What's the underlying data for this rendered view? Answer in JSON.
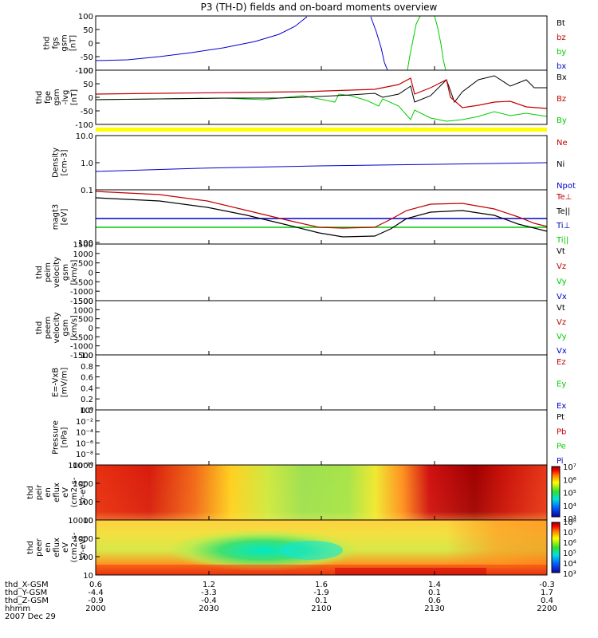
{
  "title": "P3 (TH-D) fields and on-board moments overview",
  "colors": {
    "black": "#000000",
    "red": "#c00000",
    "green": "#00cc00",
    "blue": "#0000cc",
    "yellow": "#ffff00"
  },
  "chart_data": [
    {
      "id": "fgs",
      "type": "line",
      "ylabel": [
        "thd",
        "fgs",
        "gsm",
        "[nT]"
      ],
      "yticks": [
        "100",
        "50",
        "0",
        "-50",
        "-100"
      ],
      "legend": [
        {
          "name": "Bt",
          "color": "#000000"
        },
        {
          "name": "bz",
          "color": "#c00000"
        },
        {
          "name": "by",
          "color": "#00cc00"
        },
        {
          "name": "bx",
          "color": "#0000cc"
        }
      ]
    },
    {
      "id": "fge",
      "type": "line",
      "ylabel": [
        "thd",
        "fge",
        "gsm",
        "-lvg",
        "[nT]"
      ],
      "yticks": [
        "100",
        "50",
        "0",
        "-50",
        "-100"
      ],
      "legend": [
        {
          "name": "Bx",
          "color": "#000000"
        },
        {
          "name": "Bz",
          "color": "#c00000"
        },
        {
          "name": "By",
          "color": "#00cc00"
        }
      ]
    },
    {
      "id": "density",
      "type": "line",
      "scale": "log",
      "ylabel": [
        "Density",
        "[cm-3]"
      ],
      "yticks": [
        "10.0",
        "1.0",
        "0.1"
      ],
      "legend": [
        {
          "name": "Ne",
          "color": "#c00000"
        },
        {
          "name": "Ni",
          "color": "#000000"
        },
        {
          "name": "Npot",
          "color": "#0000cc"
        }
      ]
    },
    {
      "id": "temp",
      "type": "line",
      "scale": "log",
      "ylabel": [
        "magt3",
        "[eV]"
      ],
      "yticks": [
        "100"
      ],
      "legend": [
        {
          "name": "Te⊥",
          "color": "#c00000"
        },
        {
          "name": "Te||",
          "color": "#000000"
        },
        {
          "name": "Ti⊥",
          "color": "#0000cc"
        },
        {
          "name": "Ti||",
          "color": "#00cc00"
        }
      ]
    },
    {
      "id": "peim",
      "type": "line",
      "ylabel": [
        "thd",
        "peim",
        "velocity",
        "gsm",
        "[km/s]"
      ],
      "yticks": [
        "1500",
        "1000",
        "500",
        "0",
        "-500",
        "-1000",
        "-1500"
      ],
      "legend": [
        {
          "name": "Vt",
          "color": "#000000"
        },
        {
          "name": "Vz",
          "color": "#c00000"
        },
        {
          "name": "Vy",
          "color": "#00cc00"
        },
        {
          "name": "Vx",
          "color": "#0000cc"
        }
      ]
    },
    {
      "id": "peem",
      "type": "line",
      "ylabel": [
        "thd",
        "peem",
        "velocity",
        "gsm",
        "[km/s]"
      ],
      "yticks": [
        "1500",
        "1000",
        "500",
        "0",
        "-500",
        "-1000",
        "-1500"
      ],
      "legend": [
        {
          "name": "Vt",
          "color": "#000000"
        },
        {
          "name": "Vz",
          "color": "#c00000"
        },
        {
          "name": "Vy",
          "color": "#00cc00"
        },
        {
          "name": "Vx",
          "color": "#0000cc"
        }
      ]
    },
    {
      "id": "efield",
      "type": "line",
      "ylabel": [
        "E=-VxB",
        "[mV/m]"
      ],
      "yticks": [
        "1.0",
        "0.8",
        "0.6",
        "0.4",
        "0.2",
        "0.0"
      ],
      "legend": [
        {
          "name": "Ez",
          "color": "#c00000"
        },
        {
          "name": "Ey",
          "color": "#00cc00"
        },
        {
          "name": "Ex",
          "color": "#0000cc"
        }
      ]
    },
    {
      "id": "pressure",
      "type": "line",
      "scale": "log",
      "ylabel": [
        "Pressure",
        "[nPa]"
      ],
      "yticks": [
        "10⁰",
        "10⁻²",
        "10⁻⁴",
        "10⁻⁶",
        "10⁻⁸",
        "10⁻¹⁰"
      ],
      "legend": [
        {
          "name": "Pt",
          "color": "#000000"
        },
        {
          "name": "Pb",
          "color": "#c00000"
        },
        {
          "name": "Pe",
          "color": "#00cc00"
        },
        {
          "name": "Pi",
          "color": "#0000cc"
        }
      ]
    },
    {
      "id": "peir",
      "type": "heatmap",
      "scale": "log",
      "ylabel": [
        "thd",
        "peir",
        "en",
        "eflux",
        "eV",
        "(cm2-s-",
        "sr-eV)"
      ],
      "yticks": [
        "10000",
        "1000",
        "100",
        "10"
      ],
      "colorbar_ticks": [
        "10⁷",
        "10⁶",
        "10⁵",
        "10⁴",
        "10³"
      ]
    },
    {
      "id": "peer",
      "type": "heatmap",
      "scale": "log",
      "ylabel": [
        "thd",
        "peer",
        "en",
        "eflux",
        "eV",
        "(cm2-s-",
        "sr-eV)"
      ],
      "yticks": [
        "10000",
        "1000",
        "100",
        "10"
      ],
      "colorbar_ticks": [
        "10⁸",
        "10⁷",
        "10⁶",
        "10⁵",
        "10⁴",
        "10³"
      ]
    }
  ],
  "footer": {
    "row_labels": [
      "thd_X-GSM",
      "thd_Y-GSM",
      "thd_Z-GSM",
      "hhmm",
      "2007 Dec 29"
    ],
    "columns": [
      [
        "0.6",
        "-4.4",
        "-0.9",
        "2000"
      ],
      [
        "1.2",
        "-3.3",
        "-0.4",
        "2030"
      ],
      [
        "1.6",
        "-1.9",
        "0.1",
        "2100"
      ],
      [
        "1.4",
        "0.1",
        "0.6",
        "2130"
      ],
      [
        "-0.3",
        "1.7",
        "0.4",
        "2200"
      ]
    ]
  }
}
